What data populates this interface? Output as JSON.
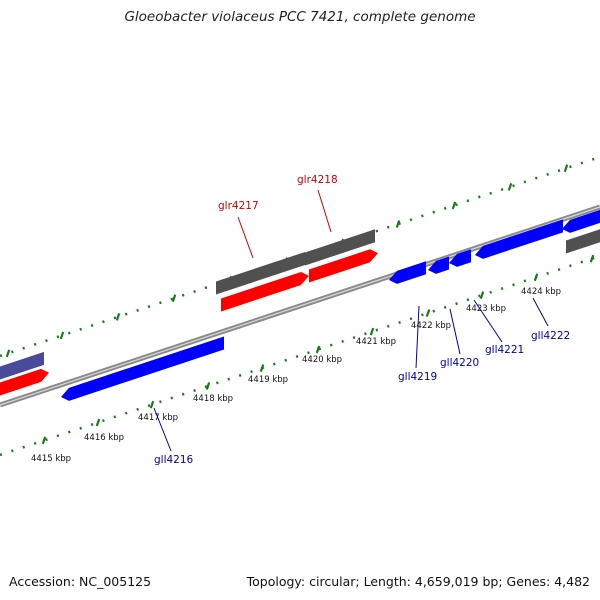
{
  "title": "Gloeobacter violaceus PCC 7421, complete genome",
  "footer": {
    "accession": "Accession: NC_005125",
    "summary": "Topology: circular; Length: 4,659,019 bp; Genes: 4,482"
  },
  "colors": {
    "forward_gene": "#ff0000",
    "reverse_gene": "#0000ff",
    "rna_gene": "#505050",
    "partial_gene": "#4a4a9a",
    "backbone": "#8a8a8a",
    "ruler_tick": "#1a7a1a",
    "forward_label": "#cc0000",
    "reverse_label": "#0000aa"
  },
  "ruler_labels": [
    "4415 kbp",
    "4416 kbp",
    "4417 kbp",
    "4418 kbp",
    "4419 kbp",
    "4420 kbp",
    "4421 kbp",
    "4422 kbp",
    "4423 kbp",
    "4424 kbp"
  ],
  "gene_labels": {
    "forward": [
      "glr4217",
      "glr4218"
    ],
    "reverse": [
      "gll4216",
      "gll4219",
      "gll4220",
      "gll4221",
      "gll4222"
    ]
  }
}
